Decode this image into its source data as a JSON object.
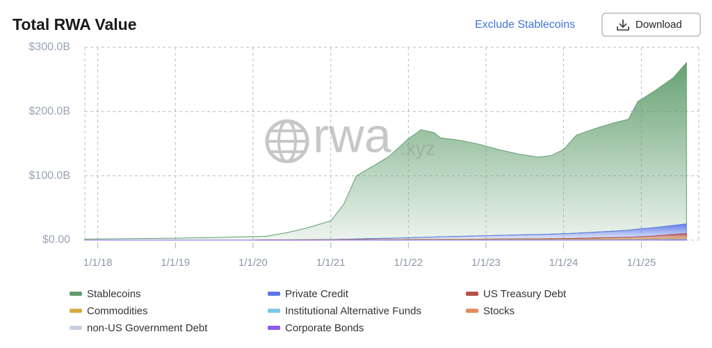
{
  "header": {
    "exclude_link": "Exclude Stablecoins",
    "download_button": "Download"
  },
  "watermark": {
    "brand": "rwa",
    "suffix": ".xyz"
  },
  "chart_data": {
    "type": "stacked_area",
    "title": "Total RWA Value",
    "x": [
      "2017-11-01",
      "2018-06-01",
      "2019-01-01",
      "2019-07-01",
      "2020-01-01",
      "2020-03-01",
      "2020-06-01",
      "2020-09-01",
      "2020-12-01",
      "2021-01-01",
      "2021-03-01",
      "2021-05-01",
      "2021-07-01",
      "2021-10-01",
      "2022-01-01",
      "2022-03-01",
      "2022-05-01",
      "2022-06-01",
      "2022-09-01",
      "2022-12-01",
      "2023-03-01",
      "2023-06-01",
      "2023-09-01",
      "2023-11-01",
      "2024-01-01",
      "2024-03-01",
      "2024-06-01",
      "2024-09-01",
      "2024-11-01",
      "2024-12-15",
      "2025-03-01",
      "2025-06-01",
      "2025-08-01"
    ],
    "series": [
      {
        "name": "Stablecoins",
        "color": "#5f9d6c",
        "values": [
          1.5,
          2.5,
          3,
          4,
          5.5,
          5.8,
          10.5,
          17.3,
          26,
          29,
          53.5,
          98,
          109.5,
          127,
          154,
          167.5,
          162.5,
          154,
          149.5,
          142.5,
          133.5,
          126,
          120.5,
          122,
          131,
          152.5,
          161.5,
          169,
          172.5,
          198.5,
          212,
          230,
          251
        ]
      },
      {
        "name": "Private Credit",
        "color": "#5a78e6",
        "values": [
          0,
          0,
          0,
          0,
          0,
          0,
          0.2,
          0.3,
          0.5,
          0.5,
          0.8,
          1,
          1.5,
          2,
          2.5,
          3,
          3.5,
          4,
          4.5,
          5,
          5.5,
          6,
          6.5,
          7,
          7.5,
          8,
          9,
          10,
          11,
          12,
          13,
          14,
          15
        ]
      },
      {
        "name": "US Treasury Debt",
        "color": "#b4524a",
        "values": [
          0,
          0,
          0,
          0,
          0,
          0,
          0,
          0,
          0,
          0,
          0,
          0,
          0,
          0,
          0,
          0,
          0,
          0,
          0,
          0.3,
          0.5,
          0.7,
          0.8,
          0.9,
          1,
          1.2,
          1.7,
          2.2,
          2.4,
          3,
          4,
          6,
          7
        ]
      },
      {
        "name": "Commodities",
        "color": "#d9a843",
        "values": [
          0,
          0,
          0,
          0,
          0,
          0.2,
          0.3,
          0.4,
          0.5,
          0.5,
          0.6,
          0.8,
          0.8,
          0.8,
          1,
          1,
          1,
          1,
          1,
          1,
          1,
          1,
          1,
          1,
          1,
          1,
          1.1,
          1.2,
          1.3,
          1.3,
          1.4,
          1.5,
          1.6
        ]
      },
      {
        "name": "Institutional Alternative Funds",
        "color": "#7cc6e6",
        "values": [
          0,
          0,
          0,
          0,
          0,
          0,
          0,
          0,
          0,
          0,
          0,
          0,
          0.1,
          0.1,
          0.2,
          0.3,
          0.3,
          0.3,
          0.3,
          0.3,
          0.4,
          0.4,
          0.4,
          0.4,
          0.4,
          0.5,
          0.5,
          0.5,
          0.5,
          0.5,
          0.6,
          0.6,
          0.6
        ]
      },
      {
        "name": "Stocks",
        "color": "#e58a5d",
        "values": [
          0,
          0,
          0,
          0,
          0,
          0,
          0,
          0,
          0,
          0,
          0,
          0,
          0,
          0,
          0,
          0,
          0,
          0,
          0,
          0,
          0,
          0,
          0,
          0,
          0,
          0,
          0,
          0,
          0,
          0,
          0,
          0.2,
          0.4
        ]
      },
      {
        "name": "non-US Government Debt",
        "color": "#c7cfdf",
        "values": [
          0,
          0,
          0,
          0,
          0,
          0,
          0,
          0,
          0,
          0,
          0,
          0,
          0,
          0,
          0,
          0,
          0,
          0,
          0,
          0,
          0,
          0,
          0,
          0,
          0.1,
          0.1,
          0.2,
          0.2,
          0.2,
          0.3,
          0.3,
          0.4,
          0.4
        ]
      },
      {
        "name": "Corporate Bonds",
        "color": "#8a5cf0",
        "values": [
          0,
          0,
          0,
          0,
          0,
          0,
          0,
          0,
          0,
          0,
          0,
          0,
          0,
          0,
          0,
          0,
          0,
          0,
          0,
          0,
          0,
          0,
          0,
          0,
          0,
          0,
          0,
          0,
          0.1,
          0.1,
          0.1,
          0.2,
          0.2
        ]
      }
    ],
    "xlim": [
      "2017-11-01",
      "2025-09-28"
    ],
    "xticks": [
      {
        "value": "2018-01-01",
        "label": "1/1/18"
      },
      {
        "value": "2019-01-01",
        "label": "1/1/19"
      },
      {
        "value": "2020-01-01",
        "label": "1/1/20"
      },
      {
        "value": "2021-01-01",
        "label": "1/1/21"
      },
      {
        "value": "2022-01-01",
        "label": "1/1/22"
      },
      {
        "value": "2023-01-01",
        "label": "1/1/23"
      },
      {
        "value": "2024-01-01",
        "label": "1/1/24"
      },
      {
        "value": "2025-01-01",
        "label": "1/1/25"
      }
    ],
    "ylim": [
      0,
      300
    ],
    "yticks": [
      {
        "value": 0,
        "label": "$0.00"
      },
      {
        "value": 100,
        "label": "$100.0B"
      },
      {
        "value": 200,
        "label": "$200.0B"
      },
      {
        "value": 300,
        "label": "$300.0B"
      }
    ],
    "grid": true
  }
}
